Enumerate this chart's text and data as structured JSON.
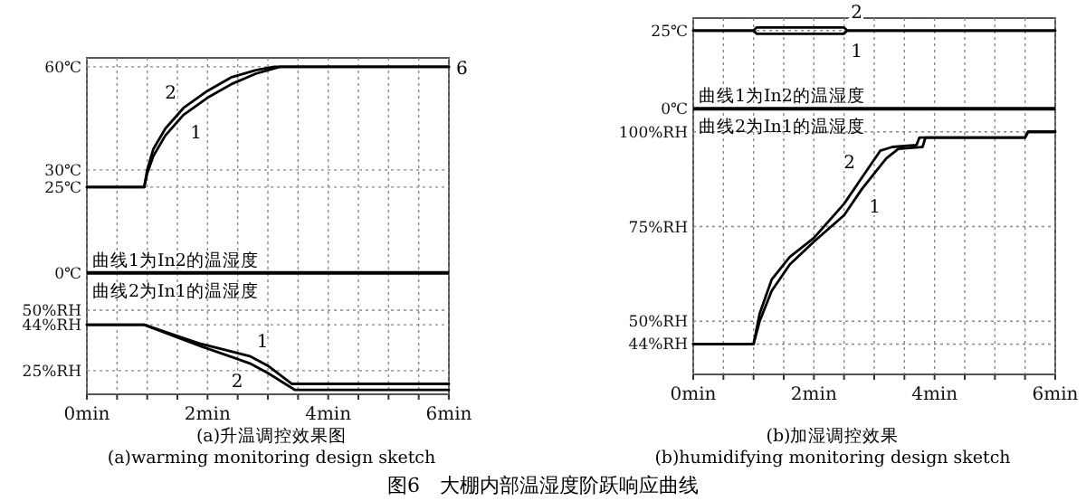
{
  "chart_data": [
    {
      "type": "line",
      "title": "(a)升温调控效果图",
      "subtitle": "(a)warming monitoring design sketch",
      "xlim": [
        0,
        6
      ],
      "xticks": [
        {
          "value": 0,
          "label": "0min"
        },
        {
          "value": 0.5,
          "label": null
        },
        {
          "value": 1,
          "label": null
        },
        {
          "value": 1.5,
          "label": null
        },
        {
          "value": 2,
          "label": "2min"
        },
        {
          "value": 2.5,
          "label": null
        },
        {
          "value": 3,
          "label": null
        },
        {
          "value": 3.5,
          "label": null
        },
        {
          "value": 4,
          "label": "4min"
        },
        {
          "value": 4.5,
          "label": null
        },
        {
          "value": 5,
          "label": null
        },
        {
          "value": 5.5,
          "label": null
        },
        {
          "value": 6,
          "label": "6min"
        }
      ],
      "ylim": [
        -35.3,
        62.6
      ],
      "yticks": [
        {
          "value": 60,
          "label": "60℃"
        },
        {
          "value": 30,
          "label": "30℃"
        },
        {
          "value": 25,
          "label": "25℃"
        },
        {
          "value": 0,
          "label": "0℃"
        }
      ],
      "y2lim": [
        15.2,
        154.5
      ],
      "y2ticks": [
        {
          "value": 50,
          "label": "50%RH"
        },
        {
          "value": 44,
          "label": "44%RH"
        },
        {
          "value": 25,
          "label": "25%RH"
        }
      ],
      "grid": true,
      "ref_lines": [
        {
          "axis": "y",
          "value": 0,
          "color": "#000000"
        }
      ],
      "annotations": [
        "曲线1为In2的温湿度",
        "曲线2为In1的温湿度",
        {
          "text": "6",
          "x": 6,
          "y": 60
        }
      ],
      "series": [
        {
          "name": "1",
          "color": "#000000",
          "x": [
            0,
            0.95,
            1.0,
            1.1,
            1.3,
            1.6,
            2.0,
            2.4,
            2.8,
            3.2,
            6
          ],
          "values": [
            25,
            25,
            29,
            34,
            40,
            46,
            51,
            55,
            58,
            60,
            60
          ]
        },
        {
          "name": "2",
          "color": "#000000",
          "x": [
            0,
            0.95,
            1.0,
            1.1,
            1.3,
            1.6,
            2.0,
            2.4,
            2.8,
            3.1,
            6
          ],
          "values": [
            25,
            25,
            30,
            36,
            42,
            48,
            53,
            57,
            59,
            60,
            60
          ]
        },
        {
          "name": "1",
          "color": "#000000",
          "axis": "y2",
          "x": [
            0,
            0.95,
            1.9,
            2.7,
            3.0,
            3.4,
            6
          ],
          "values": [
            44,
            44,
            36,
            31,
            27,
            19.5,
            19.5
          ]
        },
        {
          "name": "2",
          "color": "#000000",
          "axis": "y2",
          "x": [
            0,
            0.95,
            1.9,
            2.7,
            3.0,
            3.45,
            6
          ],
          "values": [
            44,
            44,
            35,
            28,
            24,
            17,
            17
          ]
        }
      ]
    },
    {
      "type": "line",
      "title": "(b)加湿调控效果",
      "subtitle": "(b)humidifying monitoring design sketch",
      "xlim": [
        0,
        6
      ],
      "xticks": [
        {
          "value": 0,
          "label": "0min"
        },
        {
          "value": 0.5,
          "label": null
        },
        {
          "value": 1,
          "label": null
        },
        {
          "value": 1.5,
          "label": null
        },
        {
          "value": 2,
          "label": "2min"
        },
        {
          "value": 2.5,
          "label": null
        },
        {
          "value": 3,
          "label": null
        },
        {
          "value": 3.5,
          "label": null
        },
        {
          "value": 4,
          "label": "4min"
        },
        {
          "value": 4.5,
          "label": null
        },
        {
          "value": 5,
          "label": null
        },
        {
          "value": 5.5,
          "label": null
        },
        {
          "value": 6,
          "label": "6min"
        }
      ],
      "ylim": [
        -85,
        29
      ],
      "yticks": [
        {
          "value": 25,
          "label": "25℃"
        },
        {
          "value": 0,
          "label": "0℃"
        }
      ],
      "y2lim": [
        36,
        130
      ],
      "y2ticks": [
        {
          "value": 100,
          "label": "100%RH"
        },
        {
          "value": 75,
          "label": "75%RH"
        },
        {
          "value": 50,
          "label": "50%RH"
        },
        {
          "value": 44,
          "label": "44%RH"
        }
      ],
      "grid": true,
      "ref_lines": [
        {
          "axis": "y",
          "value": 0,
          "color": "#000000"
        }
      ],
      "annotations": [
        "曲线1为In2的温湿度",
        "曲线2为In1的温湿度",
        "图6　大棚内部温湿度阶跃响应曲线"
      ],
      "series": [
        {
          "name": "1",
          "color": "#000000",
          "x": [
            0,
            1.0,
            1.05,
            2.5,
            2.55,
            6
          ],
          "values": [
            25,
            25,
            24,
            24,
            25,
            25
          ]
        },
        {
          "name": "2",
          "color": "#000000",
          "x": [
            0,
            1.0,
            1.05,
            2.5,
            2.55,
            6
          ],
          "values": [
            25,
            25,
            26,
            26,
            25,
            25
          ]
        },
        {
          "name": "1",
          "color": "#000000",
          "axis": "y2",
          "x": [
            0,
            1.0,
            1.1,
            1.3,
            1.6,
            2.0,
            2.5,
            2.8,
            3.2,
            3.4,
            3.8,
            3.85,
            5.5,
            5.55,
            6
          ],
          "values": [
            44,
            44,
            50,
            58,
            65,
            71,
            78,
            85,
            93,
            95.5,
            96,
            98.5,
            98.5,
            100,
            100
          ]
        },
        {
          "name": "2",
          "color": "#000000",
          "axis": "y2",
          "x": [
            0,
            1.0,
            1.1,
            1.3,
            1.6,
            2.0,
            2.5,
            2.8,
            3.1,
            3.3,
            3.7,
            3.75,
            5.5,
            5.55,
            6
          ],
          "values": [
            44,
            44,
            52,
            61,
            67,
            72,
            81,
            88,
            95,
            96,
            96.5,
            98.5,
            98.5,
            100,
            100
          ]
        }
      ]
    }
  ]
}
